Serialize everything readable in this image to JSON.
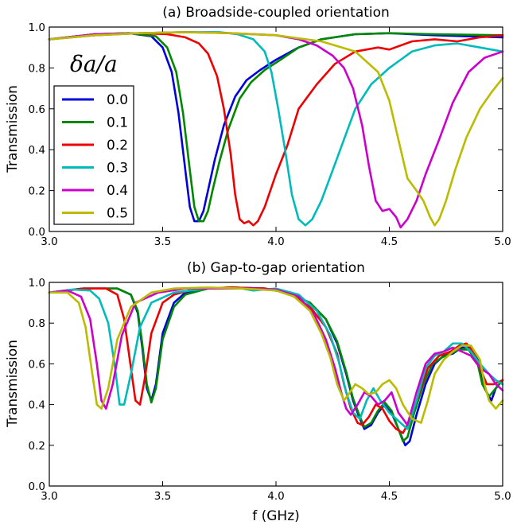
{
  "chart_data": [
    {
      "type": "line",
      "title": "(a) Broadside-coupled orientation",
      "xlabel": "",
      "ylabel": "Transmission",
      "xlim": [
        3.0,
        5.0
      ],
      "ylim": [
        0.0,
        1.0
      ],
      "xticks": [
        "3.0",
        "3.5",
        "4.0",
        "4.5",
        "5.0"
      ],
      "yticks": [
        "0.0",
        "0.2",
        "0.4",
        "0.6",
        "0.8",
        "1.0"
      ],
      "legend": {
        "title": "δa/a",
        "position": "left",
        "entries": [
          "0.0",
          "0.1",
          "0.2",
          "0.3",
          "0.4",
          "0.5"
        ]
      },
      "series": [
        {
          "name": "0.0",
          "color": "#0000dd",
          "x": [
            3.0,
            3.2,
            3.35,
            3.45,
            3.5,
            3.54,
            3.57,
            3.6,
            3.62,
            3.64,
            3.66,
            3.68,
            3.7,
            3.73,
            3.77,
            3.82,
            3.87,
            3.93,
            4.0,
            4.1,
            4.2,
            4.35,
            4.5,
            4.7,
            5.0
          ],
          "y": [
            0.94,
            0.965,
            0.97,
            0.955,
            0.9,
            0.78,
            0.58,
            0.3,
            0.12,
            0.05,
            0.05,
            0.1,
            0.2,
            0.35,
            0.52,
            0.66,
            0.74,
            0.79,
            0.84,
            0.9,
            0.94,
            0.965,
            0.97,
            0.96,
            0.95
          ]
        },
        {
          "name": "0.1",
          "color": "#008800",
          "x": [
            3.0,
            3.2,
            3.35,
            3.47,
            3.52,
            3.56,
            3.59,
            3.62,
            3.64,
            3.66,
            3.68,
            3.7,
            3.72,
            3.75,
            3.79,
            3.84,
            3.89,
            3.95,
            4.02,
            4.1,
            4.2,
            4.35,
            4.5,
            4.7,
            5.0
          ],
          "y": [
            0.94,
            0.965,
            0.97,
            0.955,
            0.9,
            0.78,
            0.58,
            0.3,
            0.12,
            0.05,
            0.05,
            0.1,
            0.2,
            0.34,
            0.5,
            0.65,
            0.73,
            0.79,
            0.84,
            0.9,
            0.94,
            0.965,
            0.97,
            0.965,
            0.96
          ]
        },
        {
          "name": "0.2",
          "color": "#ee0000",
          "x": [
            3.0,
            3.2,
            3.4,
            3.52,
            3.6,
            3.66,
            3.7,
            3.74,
            3.77,
            3.8,
            3.82,
            3.84,
            3.86,
            3.88,
            3.9,
            3.92,
            3.95,
            4.0,
            4.05,
            4.1,
            4.18,
            4.26,
            4.35,
            4.45,
            4.5,
            4.6,
            4.7,
            4.8,
            4.9,
            5.0
          ],
          "y": [
            0.94,
            0.96,
            0.97,
            0.965,
            0.95,
            0.92,
            0.87,
            0.76,
            0.6,
            0.38,
            0.18,
            0.06,
            0.04,
            0.05,
            0.03,
            0.05,
            0.12,
            0.28,
            0.42,
            0.6,
            0.72,
            0.82,
            0.88,
            0.9,
            0.89,
            0.93,
            0.94,
            0.93,
            0.95,
            0.96
          ]
        },
        {
          "name": "0.3",
          "color": "#00bbbb",
          "x": [
            3.0,
            3.2,
            3.4,
            3.6,
            3.75,
            3.83,
            3.9,
            3.95,
            3.98,
            4.01,
            4.04,
            4.07,
            4.1,
            4.13,
            4.16,
            4.2,
            4.25,
            4.3,
            4.35,
            4.42,
            4.5,
            4.6,
            4.7,
            4.8,
            4.9,
            5.0
          ],
          "y": [
            0.94,
            0.965,
            0.97,
            0.975,
            0.975,
            0.965,
            0.94,
            0.88,
            0.78,
            0.6,
            0.4,
            0.18,
            0.06,
            0.03,
            0.06,
            0.15,
            0.3,
            0.45,
            0.6,
            0.72,
            0.8,
            0.88,
            0.91,
            0.92,
            0.9,
            0.88
          ]
        },
        {
          "name": "0.4",
          "color": "#cc00cc",
          "x": [
            3.0,
            3.2,
            3.4,
            3.6,
            3.8,
            4.0,
            4.1,
            4.18,
            4.25,
            4.3,
            4.34,
            4.38,
            4.41,
            4.44,
            4.47,
            4.5,
            4.53,
            4.55,
            4.58,
            4.62,
            4.66,
            4.72,
            4.78,
            4.85,
            4.92,
            5.0
          ],
          "y": [
            0.94,
            0.965,
            0.97,
            0.975,
            0.97,
            0.96,
            0.94,
            0.91,
            0.86,
            0.8,
            0.7,
            0.52,
            0.32,
            0.15,
            0.1,
            0.11,
            0.07,
            0.02,
            0.06,
            0.15,
            0.28,
            0.45,
            0.63,
            0.78,
            0.85,
            0.88
          ]
        },
        {
          "name": "0.5",
          "color": "#bbbb00",
          "x": [
            3.0,
            3.2,
            3.4,
            3.6,
            3.8,
            4.0,
            4.2,
            4.35,
            4.45,
            4.5,
            4.54,
            4.58,
            4.62,
            4.65,
            4.68,
            4.7,
            4.72,
            4.75,
            4.79,
            4.84,
            4.9,
            4.95,
            5.0
          ],
          "y": [
            0.94,
            0.96,
            0.97,
            0.975,
            0.97,
            0.96,
            0.93,
            0.88,
            0.78,
            0.64,
            0.45,
            0.26,
            0.2,
            0.15,
            0.07,
            0.03,
            0.06,
            0.15,
            0.3,
            0.46,
            0.6,
            0.68,
            0.75
          ]
        }
      ]
    },
    {
      "type": "line",
      "title": "(b) Gap-to-gap orientation",
      "xlabel": "f (GHz)",
      "ylabel": "Transmission",
      "xlim": [
        3.0,
        5.0
      ],
      "ylim": [
        0.0,
        1.0
      ],
      "xticks": [
        "3.0",
        "3.5",
        "4.0",
        "4.5",
        "5.0"
      ],
      "yticks": [
        "0.0",
        "0.2",
        "0.4",
        "0.6",
        "0.8",
        "1.0"
      ],
      "series": [
        {
          "name": "0.0",
          "color": "#0000dd",
          "x": [
            3.0,
            3.15,
            3.3,
            3.36,
            3.39,
            3.41,
            3.43,
            3.45,
            3.47,
            3.5,
            3.55,
            3.6,
            3.7,
            3.8,
            3.95,
            4.05,
            4.15,
            4.22,
            4.27,
            4.31,
            4.34,
            4.37,
            4.39,
            4.42,
            4.45,
            4.48,
            4.51,
            4.54,
            4.57,
            4.59,
            4.62,
            4.66,
            4.7,
            4.74,
            4.78,
            4.82,
            4.86,
            4.9,
            4.92,
            4.95,
            4.97,
            5.0
          ],
          "y": [
            0.95,
            0.97,
            0.97,
            0.94,
            0.85,
            0.68,
            0.48,
            0.42,
            0.5,
            0.75,
            0.9,
            0.95,
            0.97,
            0.975,
            0.97,
            0.95,
            0.9,
            0.82,
            0.7,
            0.55,
            0.42,
            0.33,
            0.28,
            0.3,
            0.36,
            0.4,
            0.36,
            0.28,
            0.2,
            0.22,
            0.35,
            0.5,
            0.6,
            0.64,
            0.65,
            0.68,
            0.68,
            0.6,
            0.48,
            0.42,
            0.48,
            0.52
          ]
        },
        {
          "name": "0.1",
          "color": "#008800",
          "x": [
            3.0,
            3.15,
            3.3,
            3.36,
            3.39,
            3.41,
            3.43,
            3.45,
            3.47,
            3.5,
            3.55,
            3.6,
            3.7,
            3.8,
            3.95,
            4.05,
            4.15,
            4.22,
            4.27,
            4.31,
            4.34,
            4.37,
            4.39,
            4.42,
            4.45,
            4.48,
            4.51,
            4.54,
            4.56,
            4.58,
            4.61,
            4.65,
            4.69,
            4.73,
            4.77,
            4.81,
            4.85,
            4.89,
            4.91,
            4.94,
            4.97,
            5.0
          ],
          "y": [
            0.95,
            0.97,
            0.97,
            0.94,
            0.86,
            0.7,
            0.5,
            0.41,
            0.48,
            0.72,
            0.88,
            0.94,
            0.97,
            0.975,
            0.97,
            0.95,
            0.9,
            0.82,
            0.71,
            0.56,
            0.43,
            0.34,
            0.29,
            0.31,
            0.37,
            0.41,
            0.37,
            0.28,
            0.22,
            0.24,
            0.36,
            0.5,
            0.6,
            0.63,
            0.65,
            0.67,
            0.67,
            0.6,
            0.5,
            0.44,
            0.48,
            0.52
          ]
        },
        {
          "name": "0.2",
          "color": "#ee0000",
          "x": [
            3.0,
            3.15,
            3.25,
            3.3,
            3.33,
            3.36,
            3.38,
            3.4,
            3.42,
            3.45,
            3.5,
            3.55,
            3.65,
            3.8,
            3.95,
            4.05,
            4.15,
            4.22,
            4.27,
            4.3,
            4.33,
            4.36,
            4.38,
            4.41,
            4.44,
            4.47,
            4.5,
            4.53,
            4.56,
            4.59,
            4.63,
            4.67,
            4.72,
            4.77,
            4.81,
            4.84,
            4.87,
            4.9,
            4.93,
            4.96,
            5.0
          ],
          "y": [
            0.95,
            0.97,
            0.97,
            0.94,
            0.82,
            0.58,
            0.42,
            0.4,
            0.52,
            0.75,
            0.9,
            0.94,
            0.97,
            0.975,
            0.97,
            0.95,
            0.88,
            0.78,
            0.65,
            0.5,
            0.38,
            0.31,
            0.3,
            0.34,
            0.4,
            0.38,
            0.32,
            0.28,
            0.26,
            0.32,
            0.45,
            0.58,
            0.64,
            0.66,
            0.69,
            0.7,
            0.66,
            0.58,
            0.5,
            0.5,
            0.52
          ]
        },
        {
          "name": "0.3",
          "color": "#00bbbb",
          "x": [
            3.0,
            3.1,
            3.18,
            3.22,
            3.26,
            3.29,
            3.31,
            3.33,
            3.36,
            3.4,
            3.45,
            3.55,
            3.7,
            3.85,
            3.9,
            4.0,
            4.1,
            4.18,
            4.24,
            4.28,
            4.31,
            4.34,
            4.37,
            4.4,
            4.43,
            4.46,
            4.5,
            4.54,
            4.58,
            4.62,
            4.66,
            4.7,
            4.74,
            4.78,
            4.82,
            4.86,
            4.9,
            4.94,
            4.97,
            5.0
          ],
          "y": [
            0.95,
            0.965,
            0.96,
            0.92,
            0.8,
            0.58,
            0.4,
            0.4,
            0.55,
            0.78,
            0.9,
            0.95,
            0.97,
            0.97,
            0.96,
            0.97,
            0.94,
            0.86,
            0.74,
            0.6,
            0.46,
            0.36,
            0.33,
            0.42,
            0.48,
            0.42,
            0.36,
            0.32,
            0.28,
            0.42,
            0.58,
            0.64,
            0.66,
            0.7,
            0.7,
            0.66,
            0.6,
            0.55,
            0.52,
            0.5
          ]
        },
        {
          "name": "0.4",
          "color": "#cc00cc",
          "x": [
            3.0,
            3.08,
            3.14,
            3.18,
            3.21,
            3.23,
            3.25,
            3.28,
            3.32,
            3.38,
            3.48,
            3.6,
            3.75,
            3.9,
            4.0,
            4.1,
            4.17,
            4.22,
            4.26,
            4.29,
            4.31,
            4.33,
            4.36,
            4.39,
            4.42,
            4.45,
            4.48,
            4.51,
            4.54,
            4.58,
            4.62,
            4.66,
            4.7,
            4.74,
            4.78,
            4.82,
            4.86,
            4.9,
            4.94,
            4.97,
            5.0
          ],
          "y": [
            0.95,
            0.96,
            0.93,
            0.82,
            0.6,
            0.42,
            0.38,
            0.5,
            0.74,
            0.9,
            0.95,
            0.97,
            0.97,
            0.97,
            0.965,
            0.93,
            0.84,
            0.72,
            0.58,
            0.45,
            0.38,
            0.35,
            0.4,
            0.46,
            0.44,
            0.4,
            0.42,
            0.46,
            0.36,
            0.3,
            0.46,
            0.6,
            0.65,
            0.66,
            0.68,
            0.66,
            0.64,
            0.58,
            0.55,
            0.5,
            0.47
          ]
        },
        {
          "name": "0.5",
          "color": "#bbbb00",
          "x": [
            3.0,
            3.08,
            3.13,
            3.16,
            3.19,
            3.21,
            3.23,
            3.26,
            3.3,
            3.36,
            3.45,
            3.55,
            3.7,
            3.85,
            4.0,
            4.08,
            4.15,
            4.2,
            4.24,
            4.27,
            4.3,
            4.32,
            4.35,
            4.38,
            4.41,
            4.44,
            4.47,
            4.5,
            4.53,
            4.56,
            4.6,
            4.64,
            4.67,
            4.7,
            4.74,
            4.78,
            4.82,
            4.86,
            4.9,
            4.92,
            4.94,
            4.97,
            5.0
          ],
          "y": [
            0.95,
            0.95,
            0.9,
            0.78,
            0.55,
            0.4,
            0.38,
            0.48,
            0.72,
            0.88,
            0.95,
            0.97,
            0.975,
            0.97,
            0.96,
            0.93,
            0.86,
            0.75,
            0.63,
            0.5,
            0.42,
            0.45,
            0.5,
            0.48,
            0.45,
            0.46,
            0.5,
            0.52,
            0.48,
            0.4,
            0.33,
            0.31,
            0.42,
            0.55,
            0.62,
            0.66,
            0.69,
            0.69,
            0.62,
            0.5,
            0.42,
            0.38,
            0.42
          ]
        }
      ]
    }
  ]
}
